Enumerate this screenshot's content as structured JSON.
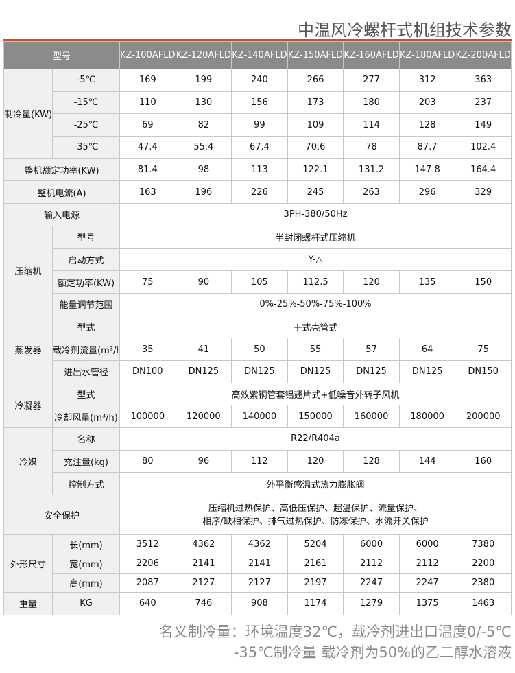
{
  "title": "中温风冷螺杆式机组技术参数",
  "header": {
    "label": "型号",
    "models": [
      "KZ-100AFLD",
      "KZ-120AFLD",
      "KZ-140AFLD",
      "KZ-150AFLD",
      "KZ-160AFLD",
      "KZ-180AFLD",
      "KZ-200AFLD"
    ]
  },
  "groups": [
    {
      "label": "制冷量(KW)",
      "rows": [
        {
          "sub": "-5℃",
          "values": [
            "169",
            "199",
            "240",
            "266",
            "277",
            "312",
            "363"
          ]
        },
        {
          "sub": "-15℃",
          "values": [
            "110",
            "130",
            "156",
            "173",
            "180",
            "203",
            "237"
          ]
        },
        {
          "sub": "-25℃",
          "values": [
            "69",
            "82",
            "99",
            "109",
            "114",
            "128",
            "149"
          ]
        },
        {
          "sub": "-35℃",
          "values": [
            "47.4",
            "55.4",
            "67.4",
            "70.6",
            "78",
            "87.7",
            "102.4"
          ]
        }
      ]
    },
    {
      "label": "整机额定功率(KW)",
      "rows": [
        {
          "values": [
            "81.4",
            "98",
            "113",
            "122.1",
            "131.2",
            "147.8",
            "164.4"
          ]
        }
      ]
    },
    {
      "label": "整机电流(A)",
      "rows": [
        {
          "values": [
            "163",
            "196",
            "226",
            "245",
            "263",
            "296",
            "329"
          ]
        }
      ]
    },
    {
      "label": "输入电源",
      "rows": [
        {
          "span": "3PH-380/50Hz"
        }
      ]
    },
    {
      "label": "压缩机",
      "rows": [
        {
          "sub": "型号",
          "span": "半封闭螺杆式压缩机"
        },
        {
          "sub": "启动方式",
          "span": "Y-△"
        },
        {
          "sub": "额定功率(KW)",
          "values": [
            "75",
            "90",
            "105",
            "112.5",
            "120",
            "135",
            "150"
          ]
        },
        {
          "sub": "能量调节范围",
          "span": "0%-25%-50%-75%-100%"
        }
      ]
    },
    {
      "label": "蒸发器",
      "rows": [
        {
          "sub": "型式",
          "span": "干式壳管式"
        },
        {
          "sub": "载冷剂流量(m³/h)",
          "values": [
            "35",
            "41",
            "50",
            "55",
            "57",
            "64",
            "75"
          ]
        },
        {
          "sub": "进出水管径",
          "values": [
            "DN100",
            "DN125",
            "DN125",
            "DN125",
            "DN125",
            "DN125",
            "DN150"
          ]
        }
      ]
    },
    {
      "label": "冷凝器",
      "rows": [
        {
          "sub": "型式",
          "span": "高效紫铜管套铝翅片式+低噪音外转子风机"
        },
        {
          "sub": "冷却风量(m³/h)",
          "values": [
            "100000",
            "120000",
            "140000",
            "150000",
            "160000",
            "180000",
            "200000"
          ]
        }
      ]
    },
    {
      "label": "冷媒",
      "rows": [
        {
          "sub": "名称",
          "span": "R22/R404a"
        },
        {
          "sub": "充注量(kg)",
          "values": [
            "80",
            "96",
            "112",
            "120",
            "128",
            "144",
            "160"
          ]
        },
        {
          "sub": "控制方式",
          "span": "外平衡感温式热力膨胀阀"
        }
      ]
    },
    {
      "label": "安全保护",
      "rows": [
        {
          "span": "压缩机过热保护、高低压保护、超温保护、流量保护、\n相序/缺相保护、排气过热保护、防冻保护、水流开关保护",
          "tall": true
        }
      ]
    },
    {
      "label": "外形尺寸",
      "rows": [
        {
          "sub": "长(mm)",
          "values": [
            "3512",
            "4362",
            "4362",
            "5204",
            "6000",
            "6000",
            "7380"
          ],
          "dim": true
        },
        {
          "sub": "宽(mm)",
          "values": [
            "2206",
            "2141",
            "2141",
            "2161",
            "2112",
            "2112",
            "2200"
          ],
          "dim": true
        },
        {
          "sub": "高(mm)",
          "values": [
            "2087",
            "2127",
            "2127",
            "2197",
            "2247",
            "2247",
            "2380"
          ],
          "dim": true
        }
      ]
    },
    {
      "label": "重量",
      "rows": [
        {
          "sub": "KG",
          "values": [
            "640",
            "746",
            "908",
            "1174",
            "1279",
            "1375",
            "1463"
          ]
        }
      ]
    }
  ],
  "notes": [
    "名义制冷量：环境温度32℃，载冷剂进出口温度0/-5℃",
    "-35℃制冷量   载冷剂为50%的乙二醇水溶液"
  ]
}
